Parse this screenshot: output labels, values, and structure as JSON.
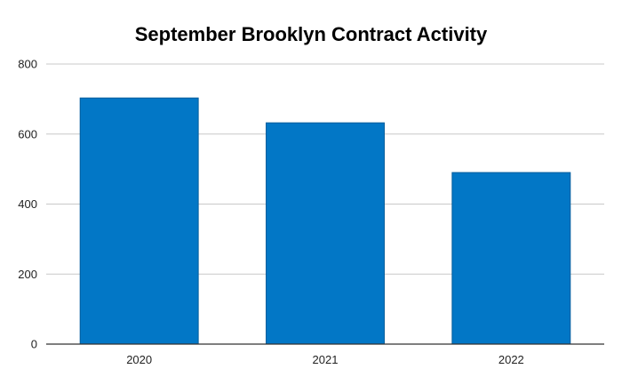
{
  "chart_data": {
    "type": "bar",
    "title": "September Brooklyn Contract Activity",
    "xlabel": "",
    "ylabel": "",
    "categories": [
      "2020",
      "2021",
      "2022"
    ],
    "values": [
      703,
      632,
      490
    ],
    "ylim": [
      0,
      800
    ],
    "yticks": [
      "0",
      "200",
      "400",
      "600",
      "800"
    ],
    "grid": true,
    "legend": "none",
    "bar_color": "#0277c6",
    "bar_edge_color": "#015c9c"
  }
}
